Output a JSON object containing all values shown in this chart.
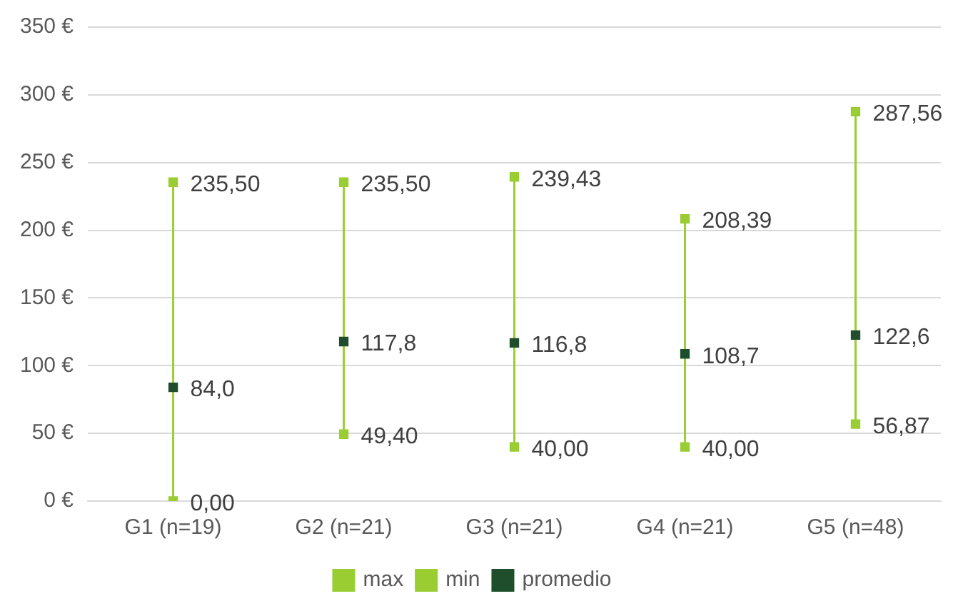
{
  "chart_data": {
    "type": "scatter",
    "categories": [
      "G1 (n=19)",
      "G2 (n=21)",
      "G3 (n=21)",
      "G4 (n=21)",
      "G5 (n=48)"
    ],
    "series": [
      {
        "name": "max",
        "color": "#9acd32",
        "values": [
          235.5,
          235.5,
          239.43,
          208.39,
          287.56
        ],
        "value_labels": [
          "235,50",
          "235,50",
          "239,43",
          "208,39",
          "287,56"
        ]
      },
      {
        "name": "min",
        "color": "#9acd32",
        "values": [
          0,
          49.4,
          40,
          40,
          56.87
        ],
        "value_labels": [
          "0,00",
          "49,40",
          "40,00",
          "40,00",
          "56,87"
        ]
      },
      {
        "name": "promedio",
        "color": "#1f4e2c",
        "values": [
          84.0,
          117.8,
          116.8,
          108.7,
          122.6
        ],
        "value_labels": [
          "84,0",
          "117,8",
          "116,8",
          "108,7",
          "122,6"
        ]
      }
    ],
    "ylim": [
      0,
      350
    ],
    "yticks": [
      {
        "value": 0,
        "label": "0 €"
      },
      {
        "value": 50,
        "label": "50 €"
      },
      {
        "value": 100,
        "label": "100 €"
      },
      {
        "value": 150,
        "label": "150 €"
      },
      {
        "value": 200,
        "label": "200 €"
      },
      {
        "value": 250,
        "label": "250 €"
      },
      {
        "value": 300,
        "label": "300 €"
      },
      {
        "value": 350,
        "label": "350 €"
      }
    ],
    "grid": "y",
    "legend": "bottom",
    "marker": "square"
  }
}
